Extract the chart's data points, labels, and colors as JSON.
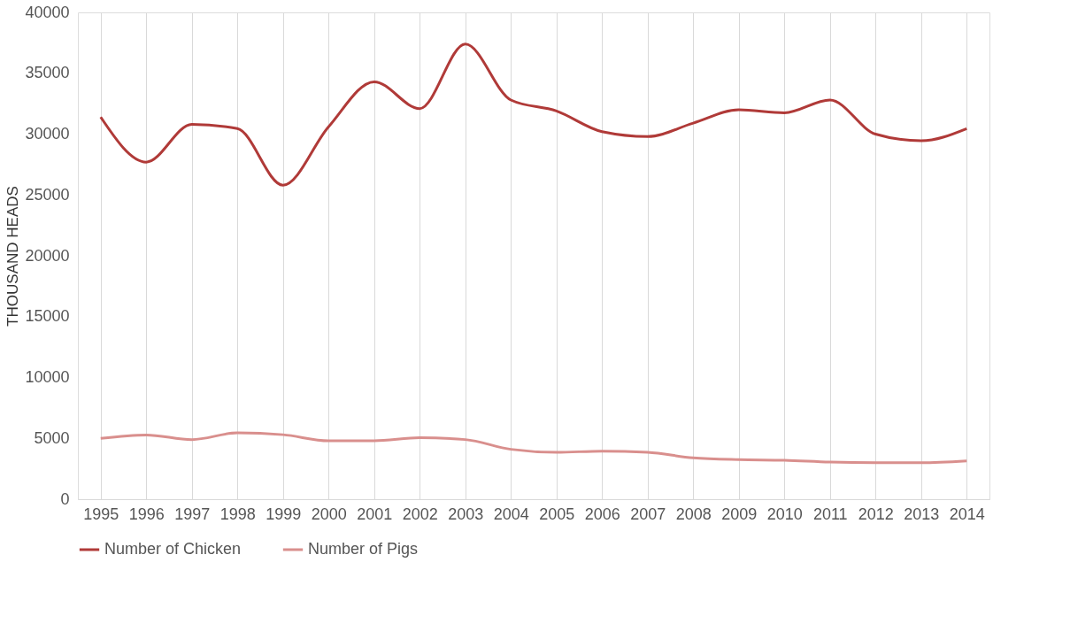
{
  "chart_data": {
    "type": "line",
    "ylabel": "THOUSAND HEADS",
    "categories": [
      "1995",
      "1996",
      "1997",
      "1998",
      "1999",
      "2000",
      "2001",
      "2002",
      "2003",
      "2004",
      "2005",
      "2006",
      "2007",
      "2008",
      "2009",
      "2010",
      "2011",
      "2012",
      "2013",
      "2014"
    ],
    "series": [
      {
        "name": "Number of Chicken",
        "color": "#b03a38",
        "values": [
          31400,
          27700,
          30800,
          30450,
          25800,
          30600,
          34300,
          32100,
          37400,
          32800,
          31900,
          30200,
          29800,
          30900,
          32000,
          31750,
          32800,
          30000,
          29450,
          30450
        ]
      },
      {
        "name": "Number of Pigs",
        "color": "#d98f8d",
        "values": [
          5000,
          5280,
          4900,
          5450,
          5300,
          4800,
          4800,
          5050,
          4900,
          4100,
          3850,
          3950,
          3850,
          3400,
          3250,
          3200,
          3050,
          3000,
          3000,
          3150
        ]
      }
    ],
    "ylim": [
      0,
      40000
    ],
    "yticks": [
      0,
      5000,
      10000,
      15000,
      20000,
      25000,
      30000,
      35000,
      40000
    ],
    "grid": "x",
    "legend": "bottom",
    "marker": "none",
    "line_style": "solid"
  }
}
